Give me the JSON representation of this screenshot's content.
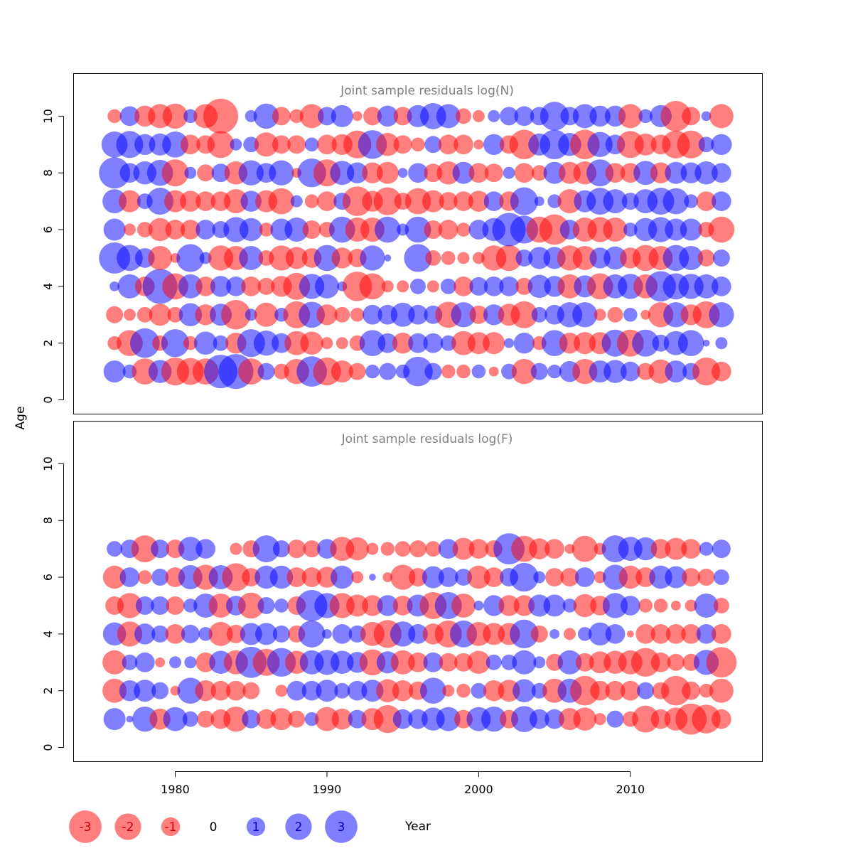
{
  "chart_data": {
    "type": "scatter",
    "subtype": "bubble",
    "xlabel": "Year",
    "ylabel": "Age",
    "xlim": [
      1973.3,
      2018.7
    ],
    "ylim": [
      -0.5,
      11.5
    ],
    "x_ticks": [
      1980,
      1990,
      2000,
      2010
    ],
    "y_ticks": [
      0,
      2,
      4,
      6,
      8,
      10
    ],
    "colors": {
      "positive": "#0000ff",
      "negative": "#ff0000",
      "fill_opacity": 0.5,
      "title": "#808080"
    },
    "years": [
      1976,
      1977,
      1978,
      1979,
      1980,
      1981,
      1982,
      1983,
      1984,
      1985,
      1986,
      1987,
      1988,
      1989,
      1990,
      1991,
      1992,
      1993,
      1994,
      1995,
      1996,
      1997,
      1998,
      1999,
      2000,
      2001,
      2002,
      2003,
      2004,
      2005,
      2006,
      2007,
      2008,
      2009,
      2010,
      2011,
      2012,
      2013,
      2014,
      2015,
      2016
    ],
    "panels": [
      {
        "title": "Joint sample residuals log(N)",
        "ages": [
          1,
          2,
          3,
          4,
          5,
          6,
          7,
          8,
          9,
          10
        ],
        "residuals": [
          [
            1.0,
            0.4,
            -1.4,
            1.1,
            -1.6,
            -1.5,
            -1.4,
            2.3,
            2.5,
            -1.4,
            0.6,
            -0.5,
            -1.3,
            1.9,
            -1.6,
            -1.0,
            -0.6,
            0.4,
            0.6,
            0.4,
            1.8,
            0.6,
            -0.4,
            -0.4,
            0.4,
            -0.2,
            0.5,
            -1.3,
            0.6,
            0.4,
            0.9,
            -1.3,
            1.0,
            1.1,
            0.8,
            -0.6,
            -1.2,
            1.0,
            0.6,
            -1.6,
            -0.8
          ],
          [
            -0.4,
            -1.4,
            1.8,
            -0.5,
            1.6,
            -0.4,
            1.1,
            0.5,
            -0.9,
            1.6,
            1.3,
            0.8,
            -1.2,
            -1.1,
            -0.3,
            -0.3,
            -0.5,
            1.4,
            0.8,
            -0.9,
            0.8,
            0.8,
            0.5,
            -1.2,
            -1.0,
            -1.0,
            0.2,
            0.9,
            -0.4,
            1.4,
            -0.9,
            -1.0,
            -1.0,
            1.5,
            -1.5,
            1.5,
            0.6,
            1.2,
            1.4,
            0.1,
            0.3
          ],
          [
            -0.6,
            -0.3,
            -0.5,
            -1.0,
            -0.5,
            1.1,
            -0.9,
            1.0,
            -1.8,
            0.3,
            -1.2,
            0.4,
            -1.5,
            1.4,
            -0.9,
            -0.5,
            -0.4,
            0.8,
            0.8,
            1.2,
            0.8,
            0.7,
            -1.4,
            1.3,
            -0.7,
            0.9,
            -1.0,
            -1.5,
            0.5,
            0.8,
            1.3,
            1.3,
            -0.3,
            -0.5,
            0.4,
            -0.2,
            -1.3,
            1.3,
            -0.9,
            -1.5,
            1.3
          ],
          [
            0.2,
            1.2,
            -0.8,
            2.5,
            -1.4,
            1.2,
            -0.8,
            0.9,
            0.8,
            -0.8,
            -0.6,
            -0.9,
            -1.5,
            1.3,
            1.2,
            0.2,
            -1.8,
            -1.4,
            -0.3,
            -0.3,
            0.5,
            -0.3,
            0.5,
            -0.8,
            0.7,
            0.8,
            0.8,
            -0.6,
            1.1,
            0.9,
            -1.2,
            1.0,
            -1.4,
            1.2,
            1.3,
            -1.2,
            1.9,
            1.4,
            1.3,
            1.2,
            0.8
          ],
          [
            2.0,
            1.4,
            0.8,
            -1.2,
            -0.2,
            1.6,
            0.3,
            -1.3,
            -1.2,
            1.2,
            -0.5,
            -1.3,
            -1.0,
            -0.8,
            1.4,
            -0.9,
            -0.7,
            1.3,
            0.1,
            0.0,
            1.6,
            -0.5,
            -0.4,
            -0.3,
            -0.3,
            -1.3,
            -1.4,
            0.6,
            1.0,
            1.0,
            -1.3,
            -1.2,
            0.9,
            1.1,
            -0.9,
            -1.4,
            -1.2,
            1.4,
            1.2,
            -0.6,
            0.6
          ],
          [
            1.0,
            -0.3,
            -0.5,
            -1.1,
            -0.8,
            -0.8,
            0.8,
            0.6,
            1.3,
            1.1,
            -0.4,
            1.0,
            1.2,
            -0.7,
            -0.5,
            1.4,
            -1.2,
            -1.2,
            1.4,
            0.3,
            1.4,
            -0.7,
            -0.8,
            -0.4,
            0.8,
            1.1,
            2.3,
            1.6,
            -1.4,
            -1.9,
            0.8,
            -1.2,
            -1.3,
            -1.2,
            0.4,
            1.1,
            1.3,
            1.0,
            1.0,
            -0.5,
            -1.4
          ],
          [
            1.2,
            -1.0,
            0.5,
            1.5,
            -1.0,
            -0.9,
            -0.8,
            -0.8,
            -1.2,
            0.9,
            -1.0,
            -1.4,
            0.3,
            -0.4,
            -0.8,
            0.6,
            -1.8,
            -0.9,
            -1.6,
            -0.6,
            -1.4,
            -1.0,
            -0.7,
            -0.8,
            -0.9,
            0.8,
            -0.8,
            1.6,
            0.2,
            0.4,
            -1.2,
            1.0,
            1.5,
            1.2,
            0.6,
            1.2,
            1.5,
            1.4,
            0.4,
            -0.8,
            0.8
          ],
          [
            2.0,
            0.8,
            1.1,
            1.4,
            -1.5,
            0.3,
            -0.6,
            0.7,
            -1.1,
            1.3,
            0.8,
            1.3,
            -0.2,
            1.7,
            -1.5,
            1.2,
            0.9,
            -0.9,
            -1.0,
            0.2,
            0.8,
            -0.7,
            -1.1,
            1.0,
            -0.8,
            -0.7,
            0.3,
            -0.8,
            -0.5,
            1.0,
            -1.0,
            -1.1,
            1.5,
            -0.8,
            -0.8,
            1.2,
            -0.9,
            1.0,
            0.9,
            1.1,
            0.8
          ],
          [
            1.4,
            1.5,
            0.9,
            1.0,
            1.4,
            -0.8,
            -0.7,
            -1.5,
            0.3,
            0.5,
            -1.2,
            -0.7,
            -0.7,
            0.4,
            -0.8,
            -0.9,
            -1.6,
            1.7,
            -1.1,
            -0.7,
            -0.4,
            0.6,
            -0.8,
            -0.8,
            -0.2,
            0.9,
            -0.7,
            -1.8,
            1.0,
            1.8,
            1.1,
            -1.8,
            1.3,
            0.8,
            -1.5,
            -1.0,
            -0.8,
            -1.6,
            -1.6,
            0.5,
            0.9
          ],
          [
            -0.4,
            0.8,
            -0.9,
            -1.2,
            -1.3,
            0.4,
            -1.2,
            -2.5,
            0.0,
            0.3,
            1.3,
            -0.7,
            -0.4,
            -1.2,
            0.7,
            1.0,
            -0.2,
            -0.7,
            0.9,
            -0.7,
            1.0,
            1.4,
            1.2,
            -0.5,
            -0.3,
            0.3,
            0.7,
            0.8,
            0.7,
            1.7,
            0.7,
            1.2,
            0.9,
            0.9,
            -1.2,
            0.4,
            1.0,
            -1.9,
            -0.7,
            0.2,
            -1.2
          ]
        ]
      },
      {
        "title": "Joint sample residuals log(F)",
        "ages": [
          1,
          2,
          3,
          4,
          5,
          6,
          7
        ],
        "residuals": [
          [
            1.0,
            0.1,
            1.3,
            -0.9,
            1.2,
            0.5,
            -0.6,
            -0.8,
            -1.3,
            0.7,
            -0.8,
            -1.0,
            -0.6,
            0.4,
            -1.2,
            -0.9,
            0.7,
            -1.0,
            -1.6,
            0.8,
            0.8,
            1.1,
            1.2,
            -0.7,
            1.2,
            1.3,
            -0.7,
            1.4,
            0.8,
            0.8,
            -1.0,
            -1.1,
            -0.3,
            0.6,
            -0.5,
            -1.5,
            -0.8,
            -1.1,
            -2.0,
            -1.7,
            -0.8
          ],
          [
            -1.2,
            0.9,
            1.0,
            0.6,
            -0.2,
            1.4,
            -0.9,
            -0.8,
            -0.8,
            -0.6,
            0.0,
            -0.3,
            0.8,
            0.8,
            1.0,
            0.5,
            0.8,
            1.0,
            -1.1,
            -0.9,
            -0.7,
            1.4,
            -0.3,
            -0.4,
            0.5,
            -0.9,
            -1.0,
            1.1,
            0.5,
            -1.2,
            1.2,
            -1.8,
            -0.8,
            -0.8,
            -0.8,
            0.6,
            -0.6,
            -1.8,
            -0.7,
            -0.4,
            -1.2
          ],
          [
            -1.2,
            0.5,
            0.8,
            -0.2,
            0.3,
            0.3,
            -0.8,
            1.1,
            -1.2,
            2.0,
            -1.5,
            1.7,
            -1.1,
            1.2,
            1.3,
            1.1,
            0.9,
            -1.4,
            1.0,
            -1.2,
            -0.8,
            0.8,
            -0.7,
            -0.7,
            -1.1,
            0.5,
            0.5,
            1.2,
            0.3,
            -0.6,
            1.2,
            -0.7,
            -1.0,
            -1.1,
            -1.2,
            -1.7,
            -0.8,
            -0.6,
            -0.6,
            1.3,
            -1.9
          ],
          [
            1.1,
            -1.3,
            0.9,
            0.6,
            -0.8,
            0.7,
            0.4,
            -1.2,
            -0.7,
            1.0,
            1.0,
            0.6,
            -0.6,
            1.5,
            0.2,
            0.8,
            0.6,
            -1.2,
            -1.6,
            1.3,
            0.8,
            -0.9,
            -1.5,
            1.5,
            -1.2,
            -1.0,
            -1.0,
            1.7,
            -0.6,
            0.2,
            -0.3,
            0.4,
            1.1,
            0.8,
            -0.1,
            -0.8,
            -0.8,
            -0.8,
            -0.8,
            0.8,
            -0.8
          ],
          [
            -0.7,
            -1.3,
            0.7,
            0.7,
            -0.7,
            0.4,
            1.2,
            -1.2,
            0.8,
            -1.4,
            0.6,
            0.4,
            -0.7,
            2.0,
            1.3,
            -1.3,
            -1.0,
            -0.9,
            0.9,
            -0.8,
            1.0,
            -1.5,
            1.5,
            -1.2,
            0.2,
            0.9,
            -0.9,
            -0.9,
            1.0,
            1.0,
            0.4,
            -1.1,
            -0.8,
            1.3,
            0.8,
            -0.4,
            -0.4,
            -0.2,
            -0.3,
            1.2,
            -0.5
          ],
          [
            -1.1,
            0.8,
            -0.4,
            0.6,
            -0.8,
            1.2,
            -1.3,
            1.2,
            -1.6,
            -0.7,
            1.1,
            1.1,
            -0.8,
            -0.8,
            -0.9,
            1.1,
            -0.3,
            0.1,
            -0.2,
            -1.3,
            -0.7,
            1.0,
            0.8,
            0.6,
            -1.1,
            -0.8,
            0.7,
            1.7,
            0.3,
            -0.7,
            -0.7,
            0.8,
            -0.3,
            1.3,
            -1.1,
            -0.8,
            1.1,
            1.0,
            -0.7,
            -0.6,
            0.5
          ],
          [
            0.5,
            0.7,
            -1.5,
            0.7,
            -0.7,
            1.2,
            0.8,
            0.0,
            -0.3,
            -0.6,
            1.5,
            0.6,
            -0.7,
            -0.6,
            0.8,
            -1.2,
            -1.1,
            -0.3,
            -0.4,
            -0.5,
            -0.6,
            -0.5,
            0.8,
            -1.0,
            -0.8,
            -0.6,
            2.0,
            -1.4,
            -0.9,
            -0.8,
            -0.2,
            -1.4,
            -0.3,
            1.5,
            1.2,
            1.1,
            -0.8,
            -1.0,
            -0.8,
            0.4,
            0.7
          ]
        ]
      }
    ],
    "legend": {
      "placement": "bottom",
      "values": [
        -3,
        -2,
        -1,
        0,
        1,
        2,
        3
      ],
      "labels": [
        "-3",
        "-2",
        "-1",
        "0",
        "1",
        "2",
        "3"
      ]
    }
  }
}
